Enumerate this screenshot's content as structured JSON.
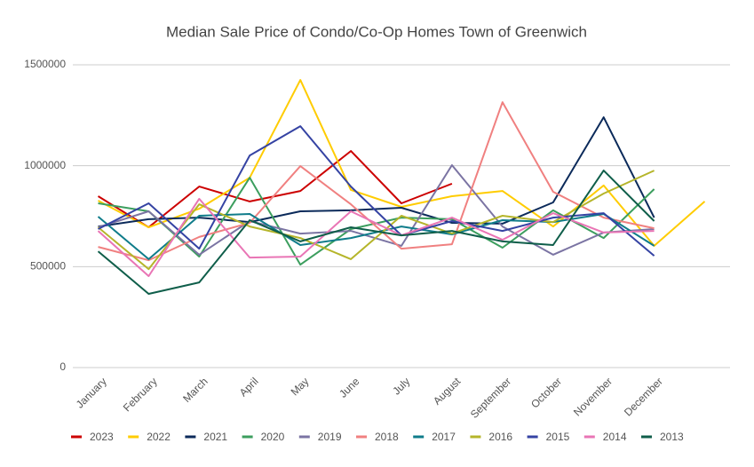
{
  "chart_data": {
    "type": "line",
    "title": "Median Sale Price of Condo/Co-Op Homes Town of Greenwich",
    "categories": [
      "January",
      "February",
      "March",
      "April",
      "May",
      "June",
      "July",
      "August",
      "September",
      "October",
      "November",
      "December",
      null
    ],
    "ylim": [
      0,
      1500000
    ],
    "yticks": [
      0,
      500000,
      1000000,
      1500000
    ],
    "grid": true,
    "legend": "bottom",
    "series": [
      {
        "name": "2023",
        "color": "#cc0000",
        "values": [
          849000,
          695000,
          897000,
          823000,
          875000,
          1073000,
          814000,
          911000,
          null,
          null,
          null,
          null,
          null
        ]
      },
      {
        "name": "2022",
        "color": "#ffcc00",
        "values": [
          827000,
          695000,
          787000,
          941000,
          1425000,
          880000,
          796000,
          849000,
          875000,
          699000,
          902000,
          603000,
          823000
        ]
      },
      {
        "name": "2021",
        "color": "#0b2a5a",
        "values": [
          699000,
          735000,
          743000,
          721000,
          774000,
          779000,
          792000,
          717000,
          713000,
          818000,
          1240000,
          743000,
          null
        ]
      },
      {
        "name": "2020",
        "color": "#3c9e5e",
        "values": [
          814000,
          774000,
          550000,
          941000,
          510000,
          686000,
          743000,
          735000,
          594000,
          779000,
          642000,
          884000,
          null
        ]
      },
      {
        "name": "2019",
        "color": "#7b74a3",
        "values": [
          695000,
          774000,
          559000,
          726000,
          664000,
          677000,
          603000,
          1003000,
          699000,
          559000,
          669000,
          686000,
          null
        ]
      },
      {
        "name": "2018",
        "color": "#f08080",
        "values": [
          598000,
          532000,
          647000,
          717000,
          998000,
          809000,
          589000,
          611000,
          1315000,
          871000,
          743000,
          690000,
          null
        ]
      },
      {
        "name": "2017",
        "color": "#0f7c8a",
        "values": [
          748000,
          537000,
          752000,
          761000,
          607000,
          642000,
          699000,
          660000,
          730000,
          721000,
          761000,
          603000,
          null
        ]
      },
      {
        "name": "2016",
        "color": "#b5b52a",
        "values": [
          695000,
          488000,
          809000,
          699000,
          642000,
          537000,
          752000,
          664000,
          752000,
          721000,
          862000,
          976000,
          null
        ]
      },
      {
        "name": "2015",
        "color": "#3543a3",
        "values": [
          686000,
          814000,
          589000,
          1051000,
          1196000,
          897000,
          655000,
          726000,
          677000,
          743000,
          765000,
          554000,
          null
        ]
      },
      {
        "name": "2014",
        "color": "#e975b5",
        "values": [
          677000,
          453000,
          836000,
          545000,
          550000,
          774000,
          655000,
          743000,
          633000,
          765000,
          669000,
          677000,
          null
        ]
      },
      {
        "name": "2013",
        "color": "#0f5e4a",
        "values": [
          576000,
          365000,
          422000,
          730000,
          625000,
          695000,
          655000,
          677000,
          625000,
          607000,
          976000,
          726000,
          null
        ]
      }
    ]
  }
}
